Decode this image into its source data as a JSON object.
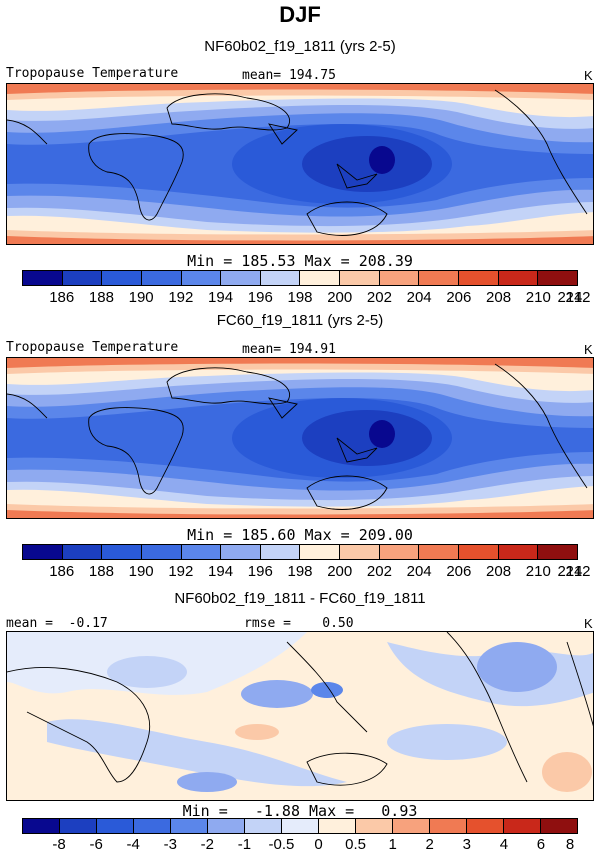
{
  "main_title": "DJF",
  "colors": {
    "abs_scale": [
      "#08088f",
      "#1c3fc0",
      "#2a5ad8",
      "#3b6ae0",
      "#5b86ea",
      "#8faaf0",
      "#c3d3f7",
      "#fff0dc",
      "#fbc9a8",
      "#f7a27d",
      "#f07a53",
      "#e5512d",
      "#c9281a",
      "#8f0f0f"
    ],
    "diff_scale": [
      "#08088f",
      "#1c3fc0",
      "#2a5ad8",
      "#3b6ae0",
      "#5b86ea",
      "#8faaf0",
      "#c3d3f7",
      "#e5ecfb",
      "#fff0dc",
      "#fbc9a8",
      "#f7a27d",
      "#f07a53",
      "#e5512d",
      "#c9281a",
      "#8f0f0f"
    ]
  },
  "chart_data": [
    {
      "type": "heatmap",
      "title": "NF60b02_f19_1811 (yrs 2-5)",
      "variable": "Tropopause Temperature",
      "units": "K",
      "mean": "194.75",
      "min": "185.53",
      "max": "208.39",
      "levels": [
        "186",
        "188",
        "190",
        "192",
        "194",
        "196",
        "198",
        "200",
        "202",
        "204",
        "206",
        "208",
        "210",
        "212",
        "214"
      ]
    },
    {
      "type": "heatmap",
      "title": "FC60_f19_1811 (yrs 2-5)",
      "variable": "Tropopause Temperature",
      "units": "K",
      "mean": "194.91",
      "min": "185.60",
      "max": "209.00",
      "levels": [
        "186",
        "188",
        "190",
        "192",
        "194",
        "196",
        "198",
        "200",
        "202",
        "204",
        "206",
        "208",
        "210",
        "212",
        "214"
      ]
    },
    {
      "type": "heatmap",
      "title": "NF60b02_f19_1811 - FC60_f19_1811",
      "units": "K",
      "mean": "-0.17",
      "rmse": "0.50",
      "min": "-1.88",
      "max": "0.93",
      "levels": [
        "-8",
        "-6",
        "-4",
        "-3",
        "-2",
        "-1",
        "-0.5",
        "0",
        "0.5",
        "1",
        "2",
        "3",
        "4",
        "6",
        "8"
      ]
    }
  ],
  "labels": {
    "mean_label": "mean=",
    "diff_mean_label": "mean =",
    "rmse_label": "rmse =",
    "min_label": "Min =",
    "max_label": "Max ="
  }
}
